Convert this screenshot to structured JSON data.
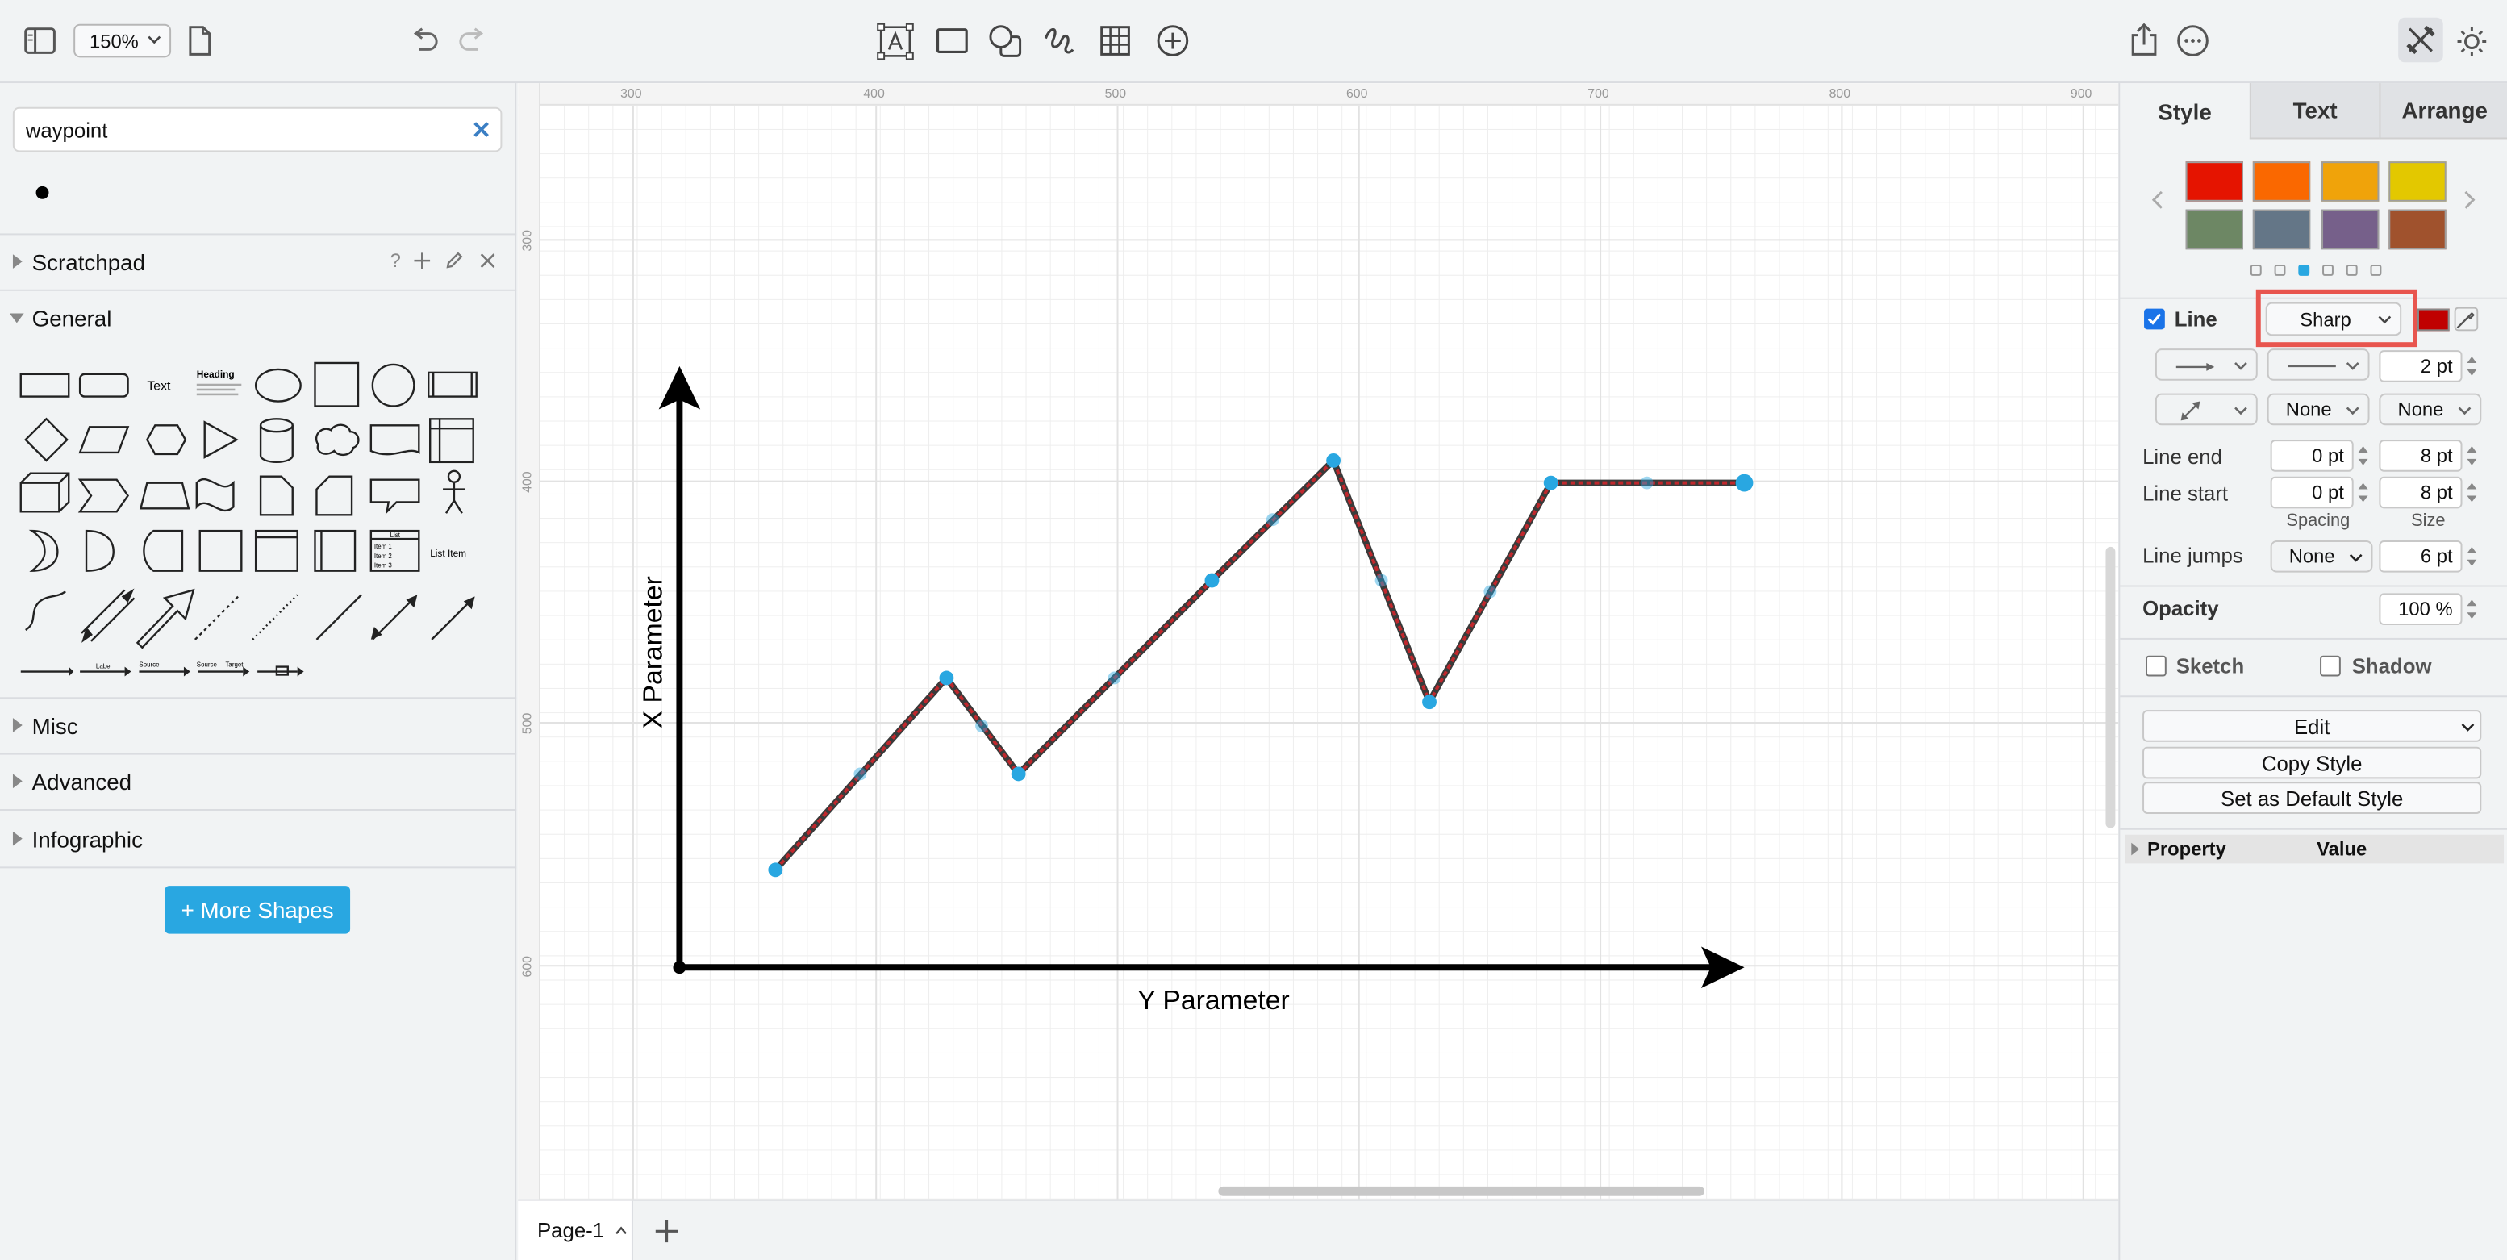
{
  "toolbar": {
    "zoom": "150%",
    "icons": [
      "format-panel-toggle-icon",
      "zoom-select",
      "page-icon",
      "undo-icon",
      "redo-icon",
      "text-tool-icon",
      "rectangle-tool-icon",
      "shapes-tool-icon",
      "freehand-tool-icon",
      "table-tool-icon",
      "insert-plus-icon",
      "share-icon",
      "more-icon",
      "format-mode-icon",
      "theme-icon"
    ]
  },
  "sidebar": {
    "search_value": "waypoint",
    "sections": {
      "scratchpad": "Scratchpad",
      "general": "General",
      "misc": "Misc",
      "advanced": "Advanced",
      "infographic": "Infographic"
    },
    "scratchpad_help": "?",
    "shape_labels": {
      "text": "Text",
      "heading": "Heading",
      "list": "List",
      "item1": "Item 1",
      "item2": "Item 2",
      "item3": "Item 3",
      "list_item": "List Item",
      "label": "Label",
      "source": "Source",
      "target": "Target"
    },
    "more_shapes": "+ More Shapes"
  },
  "canvas": {
    "ruler_top": [
      "300",
      "400",
      "500",
      "600",
      "700",
      "800",
      "900"
    ],
    "ruler_left": [
      "300",
      "400",
      "500",
      "600"
    ],
    "x_axis_label": "Y Parameter",
    "y_axis_label": "X Parameter",
    "line_color": "#c0282d",
    "waypoint_color": "#29a7e1"
  },
  "pages": {
    "current": "Page-1"
  },
  "format_panel": {
    "tabs": [
      "Style",
      "Text",
      "Arrange"
    ],
    "swatches": [
      "#e51400",
      "#fa6800",
      "#f0a30a",
      "#e3c800",
      "#6d8764",
      "#647687",
      "#76608a",
      "#a0522d"
    ],
    "line_label": "Line",
    "line_style": "Sharp",
    "line_color": "#c00000",
    "line_width": "2 pt",
    "waypoint_none_1": "None",
    "waypoint_none_2": "None",
    "line_end_label": "Line end",
    "line_end_spacing": "0 pt",
    "line_end_size": "8 pt",
    "line_start_label": "Line start",
    "line_start_spacing": "0 pt",
    "line_start_size": "8 pt",
    "spacing_label": "Spacing",
    "size_label": "Size",
    "line_jumps_label": "Line jumps",
    "line_jumps_value": "None",
    "line_jumps_size": "6 pt",
    "opacity_label": "Opacity",
    "opacity_value": "100 %",
    "sketch_label": "Sketch",
    "shadow_label": "Shadow",
    "edit_label": "Edit",
    "copy_style_label": "Copy Style",
    "default_style_label": "Set as Default Style",
    "property_header": "Property",
    "value_header": "Value"
  }
}
